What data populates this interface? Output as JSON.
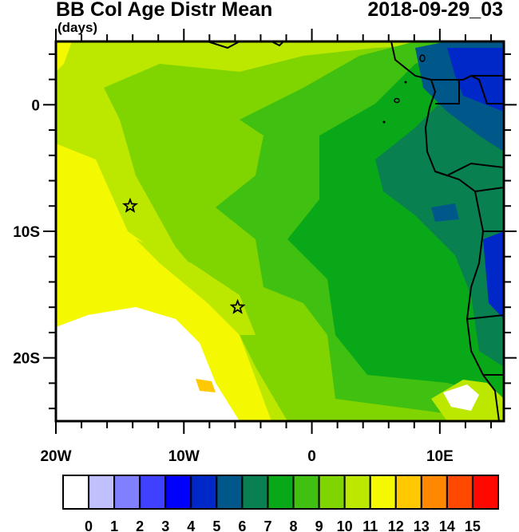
{
  "title": "BB Col Age Distr Mean",
  "units": "(days)",
  "date": "2018-09-29_03",
  "map": {
    "lon_range": [
      -20,
      15
    ],
    "lat_range": [
      -25,
      5
    ],
    "x_ticks": [
      {
        "lon": -20,
        "label": "20W"
      },
      {
        "lon": -10,
        "label": "10W"
      },
      {
        "lon": 0,
        "label": "0"
      },
      {
        "lon": 10,
        "label": "10E"
      }
    ],
    "y_ticks": [
      {
        "lat": 0,
        "label": "0"
      },
      {
        "lat": -10,
        "label": "10S"
      },
      {
        "lat": -20,
        "label": "20S"
      }
    ],
    "markers": [
      {
        "type": "star",
        "lon": -14.2,
        "lat": -8
      },
      {
        "type": "star",
        "lon": -5.8,
        "lat": -16
      }
    ]
  },
  "colorbar": {
    "labels": [
      "0",
      "1",
      "2",
      "3",
      "4",
      "5",
      "6",
      "7",
      "8",
      "9",
      "10",
      "11",
      "12",
      "13",
      "14",
      "15"
    ],
    "colors": [
      "#ffffff",
      "#c0c0ff",
      "#8080ff",
      "#4040ff",
      "#0000ff",
      "#0028c8",
      "#00588a",
      "#088050",
      "#08a818",
      "#40c010",
      "#80d400",
      "#bce800",
      "#f4f800",
      "#ffc800",
      "#ff8800",
      "#ff4800",
      "#ff0800"
    ]
  }
}
